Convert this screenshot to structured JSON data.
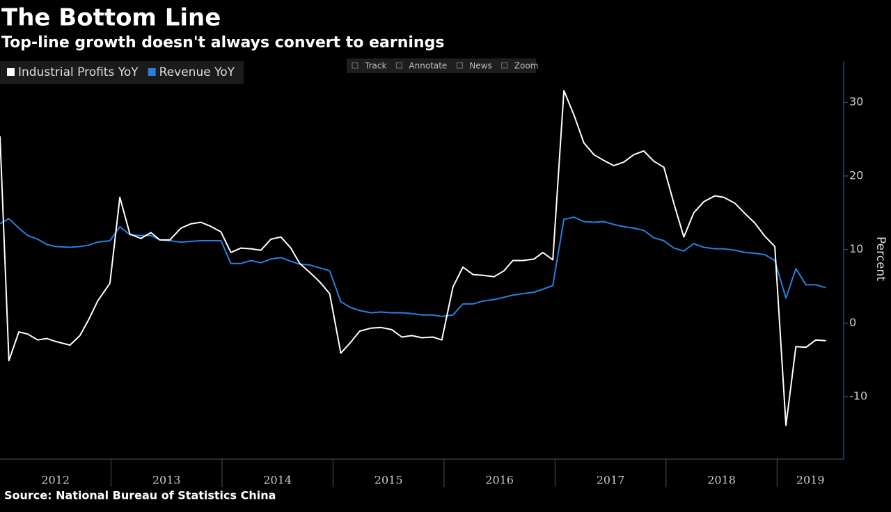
{
  "chart_data": {
    "type": "line",
    "title": "The Bottom Line",
    "subtitle": "Top-line growth doesn't always convert to earnings",
    "source": "Source: National Bureau of Statistics China",
    "toolbar": [
      "Track",
      "Annotate",
      "News",
      "Zoom"
    ],
    "ylabel": "Percent",
    "x": [
      2012.0,
      2012.08,
      2012.17,
      2012.25,
      2012.34,
      2012.42,
      2012.5,
      2012.63,
      2012.72,
      2012.8,
      2012.88,
      2012.99,
      2013.08,
      2013.17,
      2013.27,
      2013.36,
      2013.44,
      2013.53,
      2013.63,
      2013.72,
      2013.81,
      2013.89,
      2013.99,
      2014.08,
      2014.17,
      2014.26,
      2014.35,
      2014.44,
      2014.53,
      2014.62,
      2014.7,
      2014.79,
      2014.88,
      2014.97,
      2015.07,
      2015.16,
      2015.24,
      2015.34,
      2015.43,
      2015.53,
      2015.62,
      2015.71,
      2015.8,
      2015.9,
      2015.98,
      2016.08,
      2016.17,
      2016.26,
      2016.35,
      2016.45,
      2016.54,
      2016.62,
      2016.71,
      2016.81,
      2016.89,
      2016.98,
      2017.08,
      2017.17,
      2017.26,
      2017.35,
      2017.44,
      2017.53,
      2017.62,
      2017.71,
      2017.8,
      2017.89,
      2017.98,
      2018.07,
      2018.16,
      2018.25,
      2018.34,
      2018.44,
      2018.52,
      2018.62,
      2018.71,
      2018.8,
      2018.89,
      2018.98,
      2019.08,
      2019.17,
      2019.26,
      2019.35,
      2019.44
    ],
    "series": [
      {
        "name": "Industrial Profits YoY",
        "color": "#ffffff",
        "values": [
          25.4,
          -5.1,
          -1.2,
          -1.5,
          -2.3,
          -2.1,
          -2.5,
          -3.0,
          -1.7,
          0.5,
          3.0,
          5.4,
          17.1,
          12.1,
          11.5,
          12.3,
          11.3,
          11.3,
          12.9,
          13.5,
          13.7,
          13.2,
          12.4,
          9.6,
          10.2,
          10.1,
          9.9,
          11.4,
          11.7,
          10.2,
          8.1,
          6.9,
          5.6,
          4.0,
          -4.1,
          -2.6,
          -1.1,
          -0.7,
          -0.6,
          -0.9,
          -1.9,
          -1.7,
          -2.0,
          -1.9,
          -2.3,
          4.9,
          7.6,
          6.6,
          6.5,
          6.3,
          7.1,
          8.5,
          8.5,
          8.7,
          9.6,
          8.6,
          31.6,
          28.3,
          24.5,
          22.9,
          22.1,
          21.4,
          21.9,
          22.9,
          23.4,
          22.0,
          21.2,
          16.3,
          11.7,
          15.0,
          16.5,
          17.3,
          17.1,
          16.3,
          14.9,
          13.6,
          11.8,
          10.4,
          -13.9,
          -3.2,
          -3.3,
          -2.3,
          -2.4
        ]
      },
      {
        "name": "Revenue YoY",
        "color": "#2a7fe0",
        "values": [
          13.5,
          14.2,
          12.9,
          11.9,
          11.4,
          10.7,
          10.4,
          10.3,
          10.4,
          10.6,
          11.0,
          11.2,
          13.1,
          12.0,
          11.9,
          11.9,
          11.3,
          11.2,
          11.0,
          11.1,
          11.2,
          11.2,
          11.2,
          8.1,
          8.1,
          8.5,
          8.2,
          8.7,
          8.9,
          8.4,
          8.0,
          7.9,
          7.5,
          7.1,
          2.9,
          2.1,
          1.7,
          1.4,
          1.5,
          1.4,
          1.4,
          1.3,
          1.1,
          1.1,
          0.9,
          1.1,
          2.6,
          2.6,
          3.0,
          3.2,
          3.5,
          3.8,
          4.0,
          4.2,
          4.6,
          5.1,
          14.1,
          14.4,
          13.8,
          13.7,
          13.8,
          13.4,
          13.1,
          12.9,
          12.6,
          11.6,
          11.2,
          10.2,
          9.8,
          10.8,
          10.3,
          10.1,
          10.1,
          9.9,
          9.6,
          9.5,
          9.3,
          8.5,
          3.4,
          7.4,
          5.2,
          5.2,
          4.8
        ]
      }
    ],
    "xlim": [
      2012,
      2019.6
    ],
    "xticks": [
      {
        "value": 2012,
        "label": "2012"
      },
      {
        "value": 2013,
        "label": "2013"
      },
      {
        "value": 2014,
        "label": "2014"
      },
      {
        "value": 2015,
        "label": "2015"
      },
      {
        "value": 2016,
        "label": "2016"
      },
      {
        "value": 2017,
        "label": "2017"
      },
      {
        "value": 2018,
        "label": "2018"
      },
      {
        "value": 2019,
        "label": "2019"
      }
    ],
    "ylim": [
      -18.5,
      35.6
    ],
    "yticks": [
      -10,
      0,
      10,
      20,
      30
    ],
    "y_axis_side": "right",
    "legend": "top-left"
  }
}
